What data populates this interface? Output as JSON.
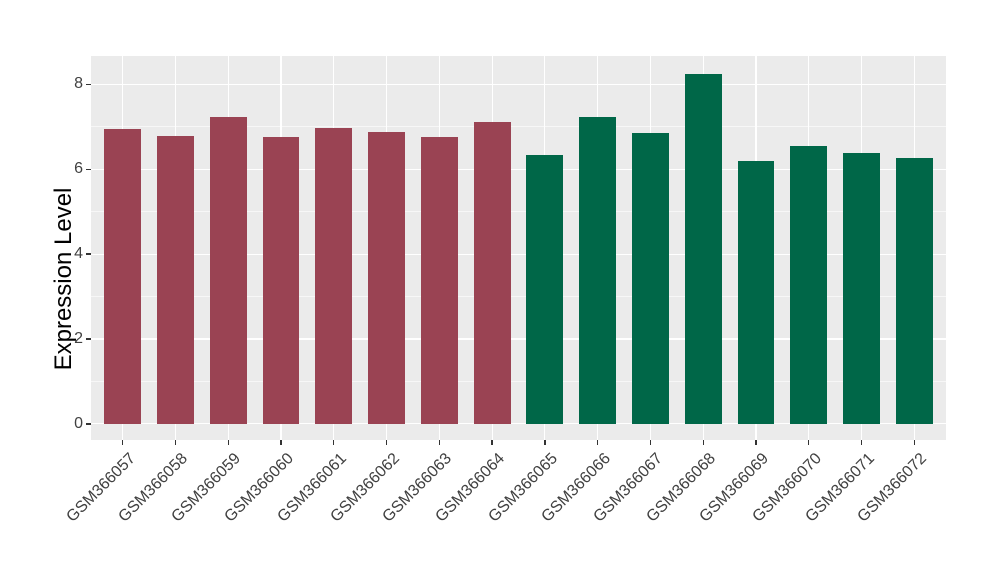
{
  "figure": {
    "background": "#FFFFFF",
    "panel_background": "#EBEBEB",
    "grid_major_color": "#FFFFFF",
    "grid_minor_color": "#FFFFFF",
    "tick_color": "#333333",
    "axis_text_color": "#404040",
    "axis_title_color": "#000000"
  },
  "chart_data": {
    "type": "bar",
    "title": "",
    "xlabel": "",
    "ylabel": "Expression Level",
    "categories": [
      "GSM366057",
      "GSM366058",
      "GSM366059",
      "GSM366060",
      "GSM366061",
      "GSM366062",
      "GSM366063",
      "GSM366064",
      "GSM366065",
      "GSM366066",
      "GSM366067",
      "GSM366068",
      "GSM366069",
      "GSM366070",
      "GSM366071",
      "GSM366072"
    ],
    "values": [
      6.95,
      6.79,
      7.23,
      6.76,
      6.97,
      6.88,
      6.75,
      7.12,
      6.33,
      7.23,
      6.86,
      8.25,
      6.2,
      6.55,
      6.39,
      6.27
    ],
    "bar_colors": [
      "#9A4353",
      "#9A4353",
      "#9A4353",
      "#9A4353",
      "#9A4353",
      "#9A4353",
      "#9A4353",
      "#9A4353",
      "#006748",
      "#006748",
      "#006748",
      "#006748",
      "#006748",
      "#006748",
      "#006748",
      "#006748"
    ],
    "color_groups": [
      {
        "color": "#9A4353",
        "first": "GSM366057",
        "last": "GSM366064"
      },
      {
        "color": "#006748",
        "first": "GSM366065",
        "last": "GSM366072"
      }
    ],
    "yticks": [
      0,
      2,
      4,
      6,
      8
    ],
    "yticks_minor": [
      1,
      3,
      5,
      7
    ],
    "ylim": [
      -0.38,
      8.67
    ],
    "grid": true,
    "legend_position": "none",
    "x_tick_label_rotation": 45
  }
}
